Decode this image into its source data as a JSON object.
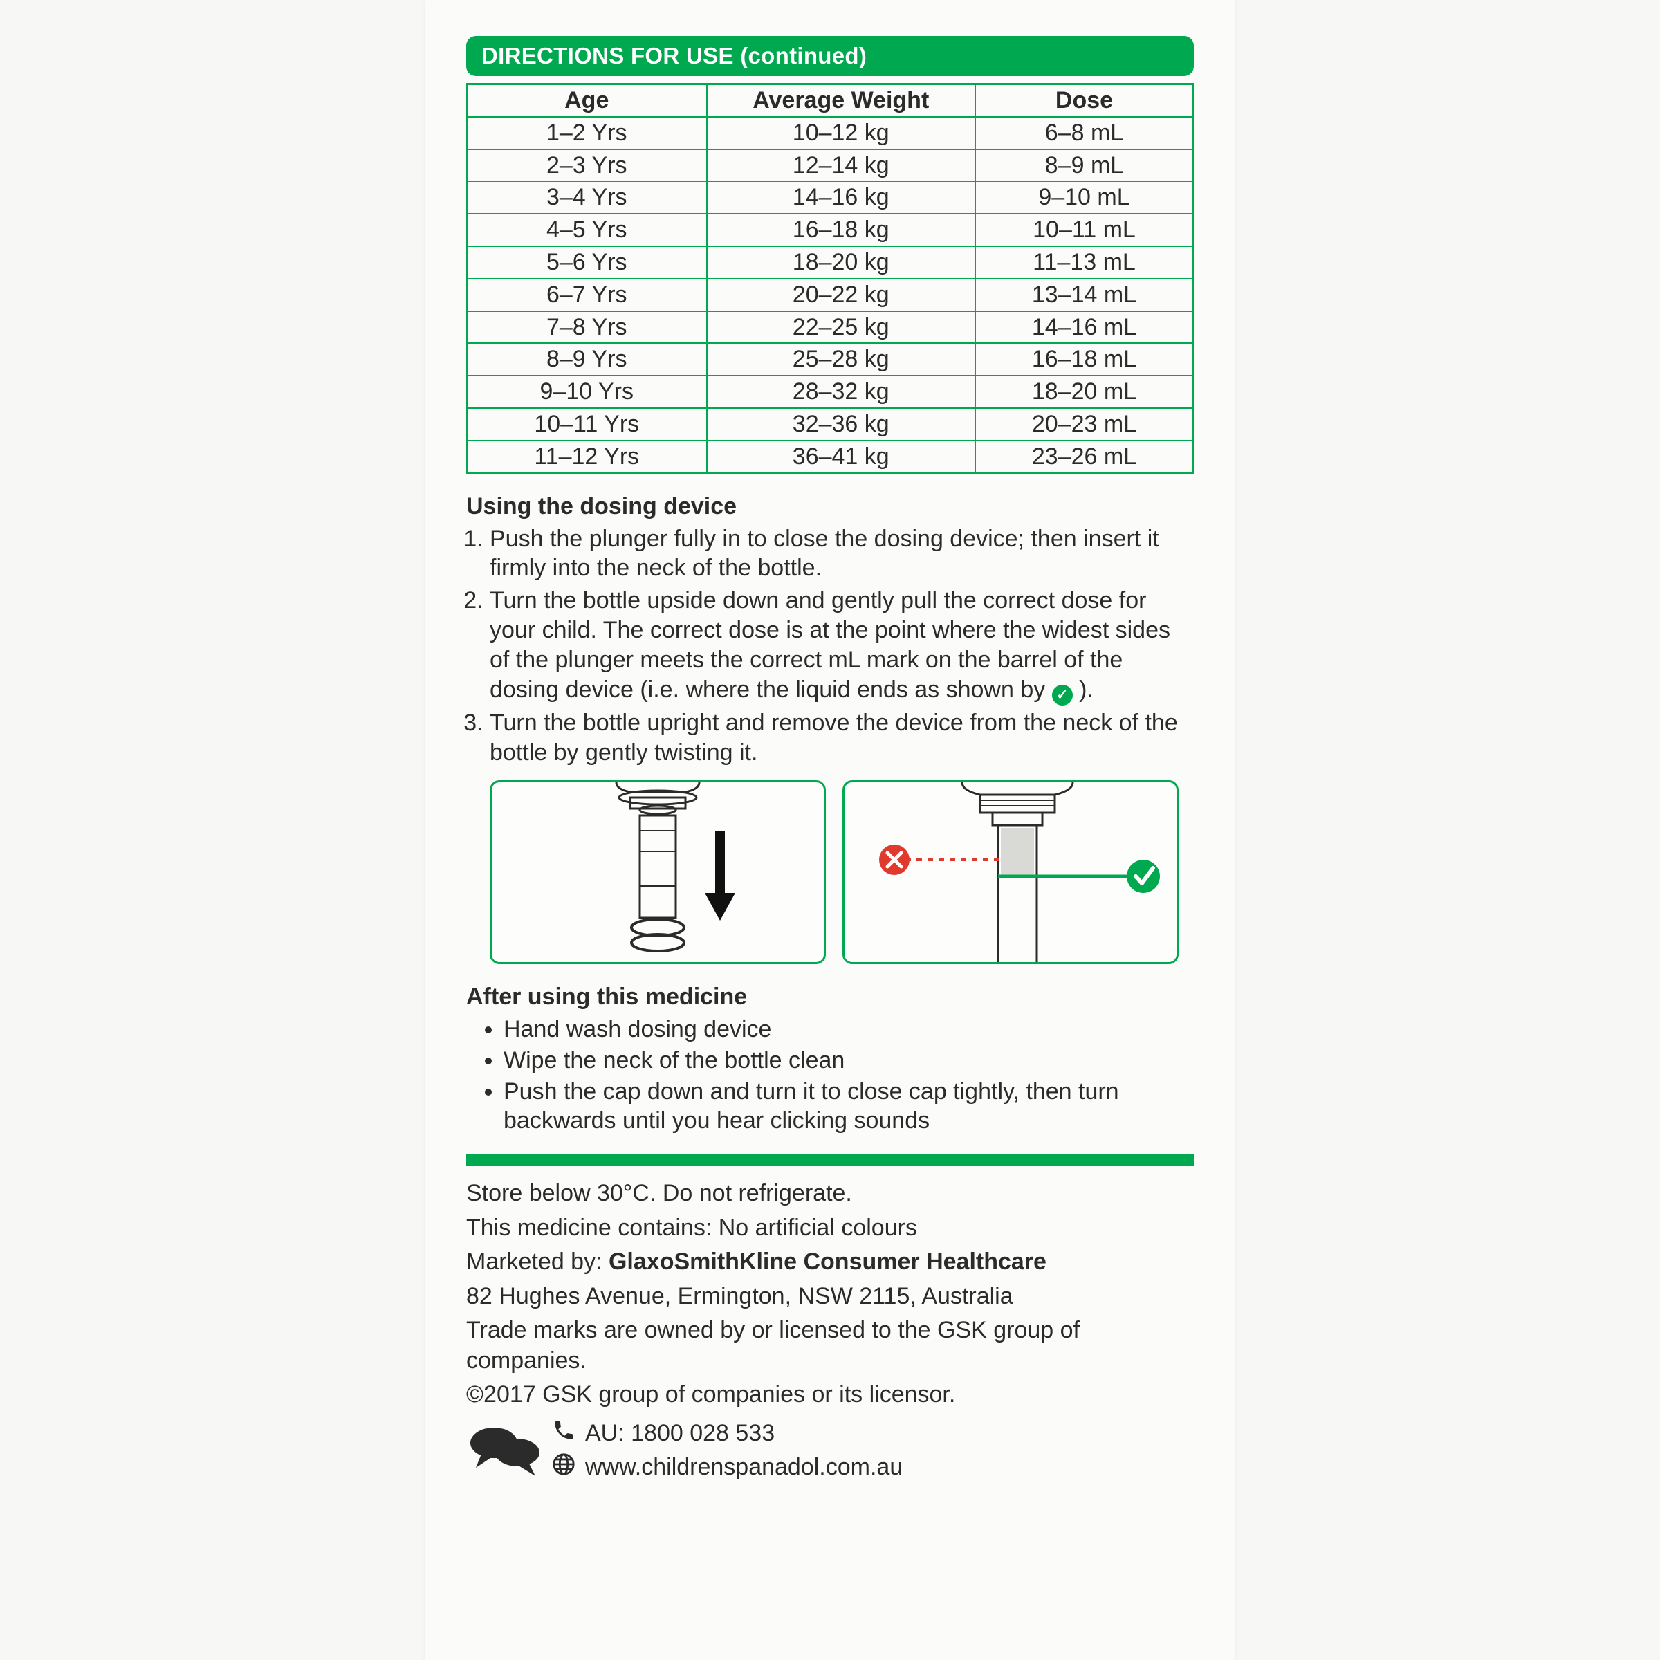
{
  "colors": {
    "brand_green": "#00a84f",
    "text": "#2b2b2b",
    "card_bg": "#fbfbf9",
    "page_bg": "#f7f7f5",
    "error_red": "#e03a2f"
  },
  "header": {
    "title": "DIRECTIONS FOR USE (continued)"
  },
  "dose_table": {
    "columns": [
      "Age",
      "Average Weight",
      "Dose"
    ],
    "rows": [
      [
        "1–2 Yrs",
        "10–12 kg",
        "6–8 mL"
      ],
      [
        "2–3 Yrs",
        "12–14 kg",
        "8–9 mL"
      ],
      [
        "3–4 Yrs",
        "14–16 kg",
        "9–10 mL"
      ],
      [
        "4–5 Yrs",
        "16–18 kg",
        "10–11 mL"
      ],
      [
        "5–6 Yrs",
        "18–20 kg",
        "11–13 mL"
      ],
      [
        "6–7 Yrs",
        "20–22 kg",
        "13–14 mL"
      ],
      [
        "7–8 Yrs",
        "22–25 kg",
        "14–16 mL"
      ],
      [
        "8–9 Yrs",
        "25–28 kg",
        "16–18 mL"
      ],
      [
        "9–10 Yrs",
        "28–32 kg",
        "18–20 mL"
      ],
      [
        "10–11 Yrs",
        "32–36 kg",
        "20–23 mL"
      ],
      [
        "11–12 Yrs",
        "36–41 kg",
        "23–26 mL"
      ]
    ]
  },
  "using_device": {
    "title": "Using the dosing device",
    "steps_pre": [
      "Push the plunger fully in to close the dosing device; then insert it firmly into the neck of the bottle.",
      "Turn the bottle upside down and gently pull the correct dose for your child. The correct dose is at the point where the widest sides of the plunger meets the correct mL mark on the barrel of the dosing device (i.e. where the liquid ends as shown by "
    ],
    "step2_post": " ).",
    "step3": "Turn the bottle upright and remove the device from the neck of the bottle by gently twisting it."
  },
  "after_use": {
    "title": "After using this medicine",
    "items": [
      "Hand wash dosing device",
      "Wipe the neck of the bottle clean",
      "Push the cap down and turn it to close cap tightly, then turn backwards until you hear clicking sounds"
    ]
  },
  "footer": {
    "storage": "Store below 30°C. Do not refrigerate.",
    "contains": "This medicine contains: No artificial colours",
    "marketed_label": "Marketed by: ",
    "marketed_company": "GlaxoSmithKline Consumer Healthcare",
    "address": "82 Hughes Avenue, Ermington, NSW 2115, Australia",
    "trademarks": "Trade marks are owned by or licensed to the GSK group of companies.",
    "copyright": "©2017 GSK group of companies or its licensor.",
    "phone": "AU: 1800 028 533",
    "website": "www.childrenspanadol.com.au"
  }
}
